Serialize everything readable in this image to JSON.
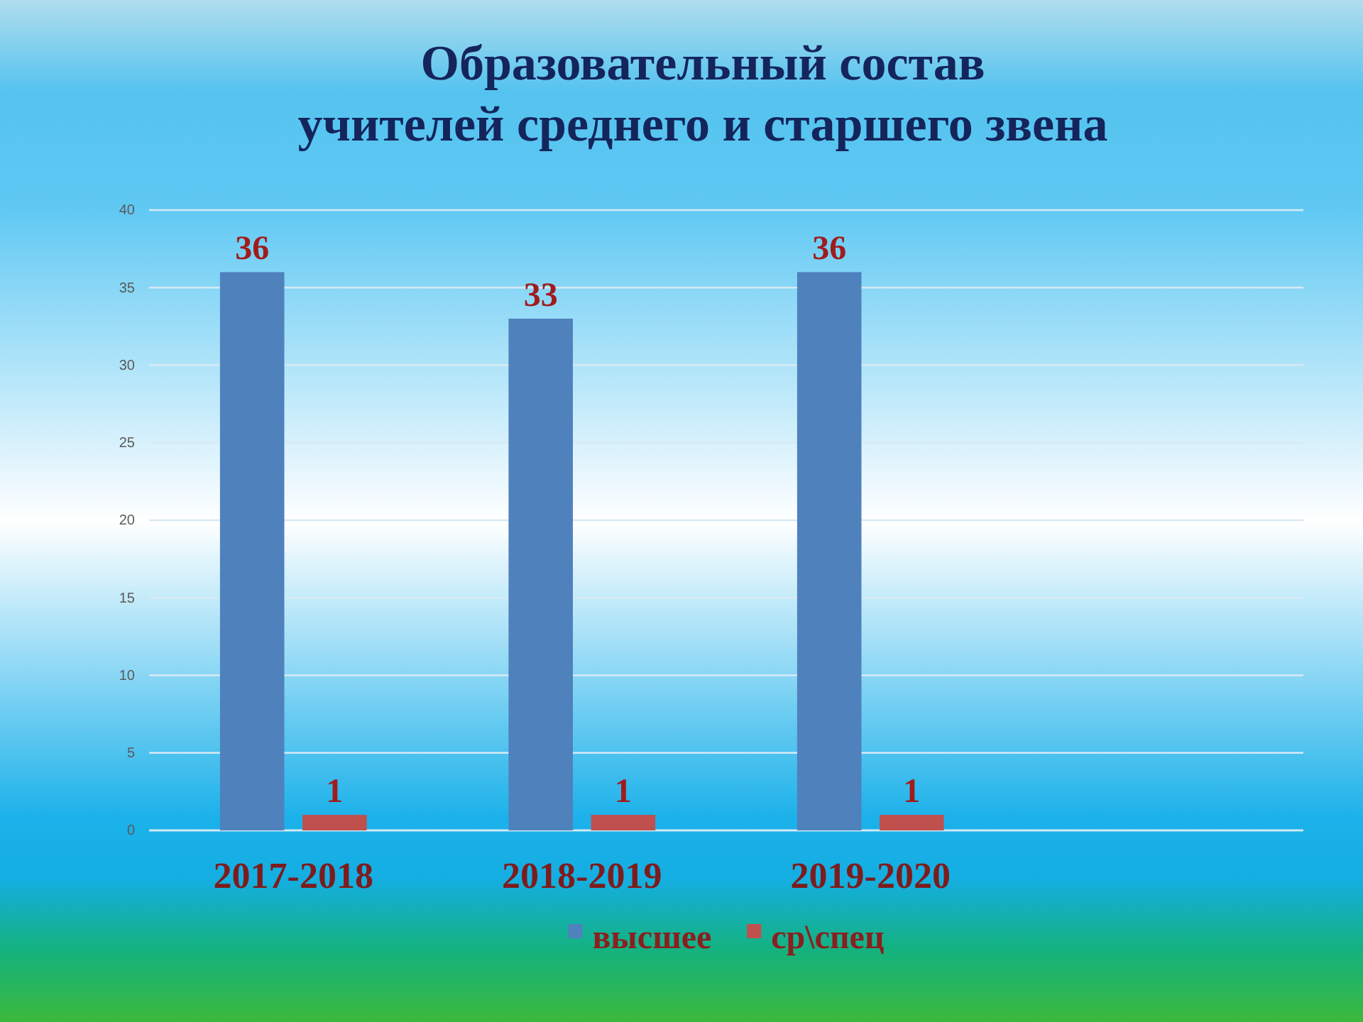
{
  "chart_data": {
    "type": "bar",
    "title": "Образовательный состав\nучителей среднего и старшего звена",
    "categories": [
      "2017-2018",
      "2018-2019",
      "2019-2020",
      null
    ],
    "series": [
      {
        "name": "высшее",
        "color": "#4f81bd",
        "values": [
          36,
          33,
          36,
          null
        ]
      },
      {
        "name": "ср\\спец",
        "color": "#c0504d",
        "values": [
          1,
          1,
          1,
          null
        ]
      }
    ],
    "ylim": [
      0,
      40
    ],
    "yticks": [
      0,
      5,
      10,
      15,
      20,
      25,
      30,
      35,
      40
    ],
    "grid": "y",
    "legend": "bottom",
    "data_labels": true
  }
}
